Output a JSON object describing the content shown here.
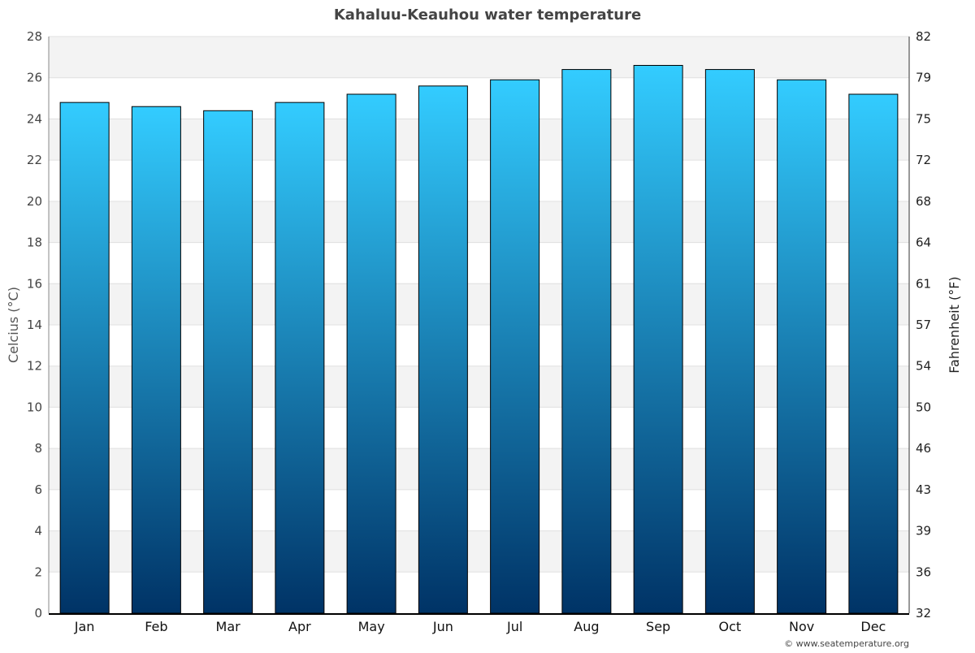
{
  "chart_data": {
    "type": "bar",
    "title": "Kahaluu-Keauhou water temperature",
    "categories": [
      "Jan",
      "Feb",
      "Mar",
      "Apr",
      "May",
      "Jun",
      "Jul",
      "Aug",
      "Sep",
      "Oct",
      "Nov",
      "Dec"
    ],
    "values": [
      24.8,
      24.6,
      24.4,
      24.8,
      25.2,
      25.6,
      25.9,
      26.4,
      26.6,
      26.4,
      25.9,
      25.2
    ],
    "ylabel": "Celcius (°C)",
    "y2label": "Fahrenheit (°F)",
    "ylim": [
      0,
      28
    ],
    "yticks": [
      "0",
      "2",
      "4",
      "6",
      "8",
      "10",
      "12",
      "14",
      "16",
      "18",
      "20",
      "22",
      "24",
      "26",
      "28"
    ],
    "y2ticks": [
      "32",
      "36",
      "39",
      "43",
      "46",
      "50",
      "54",
      "57",
      "61",
      "64",
      "68",
      "72",
      "75",
      "79",
      "82"
    ],
    "grid": true,
    "colors": {
      "bar_top": "#33ccff",
      "bar_bottom": "#003366",
      "band": "#f3f3f3"
    }
  },
  "credit": "© www.seatemperature.org"
}
